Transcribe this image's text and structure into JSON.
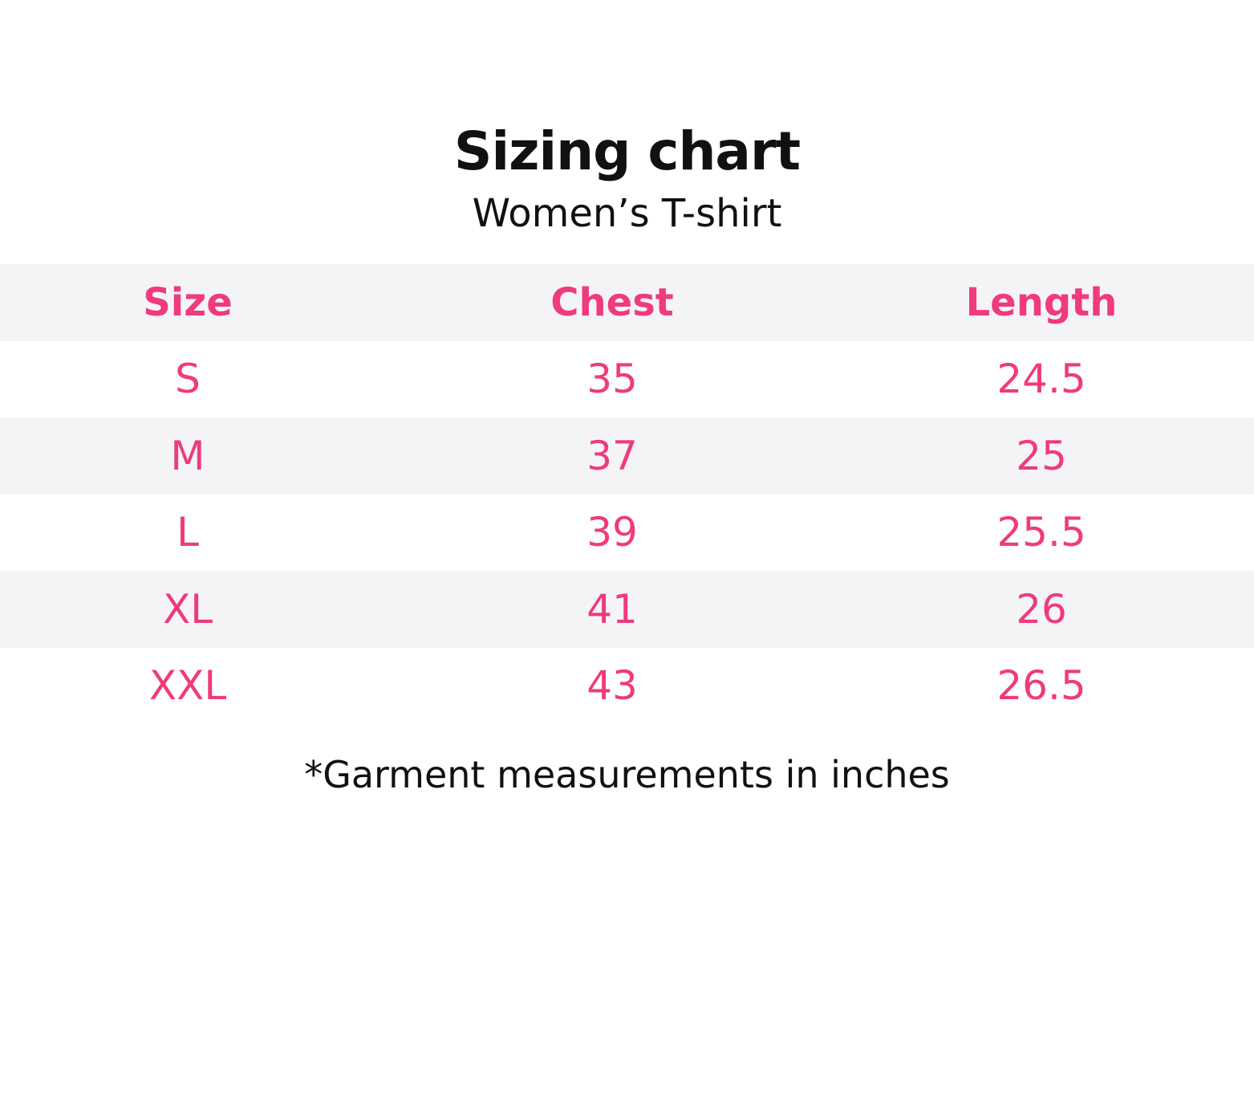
{
  "title": "Sizing chart",
  "subtitle": "Women’s T-shirt",
  "colors": {
    "accent": "#ef3b7b",
    "stripe": "#f4f4f6",
    "text": "#111111"
  },
  "table": {
    "headers": [
      "Size",
      "Chest",
      "Length"
    ],
    "rows": [
      [
        "S",
        "35",
        "24.5"
      ],
      [
        "M",
        "37",
        "25"
      ],
      [
        "L",
        "39",
        "25.5"
      ],
      [
        "XL",
        "41",
        "26"
      ],
      [
        "XXL",
        "43",
        "26.5"
      ]
    ]
  },
  "note": "*Garment measurements in inches"
}
